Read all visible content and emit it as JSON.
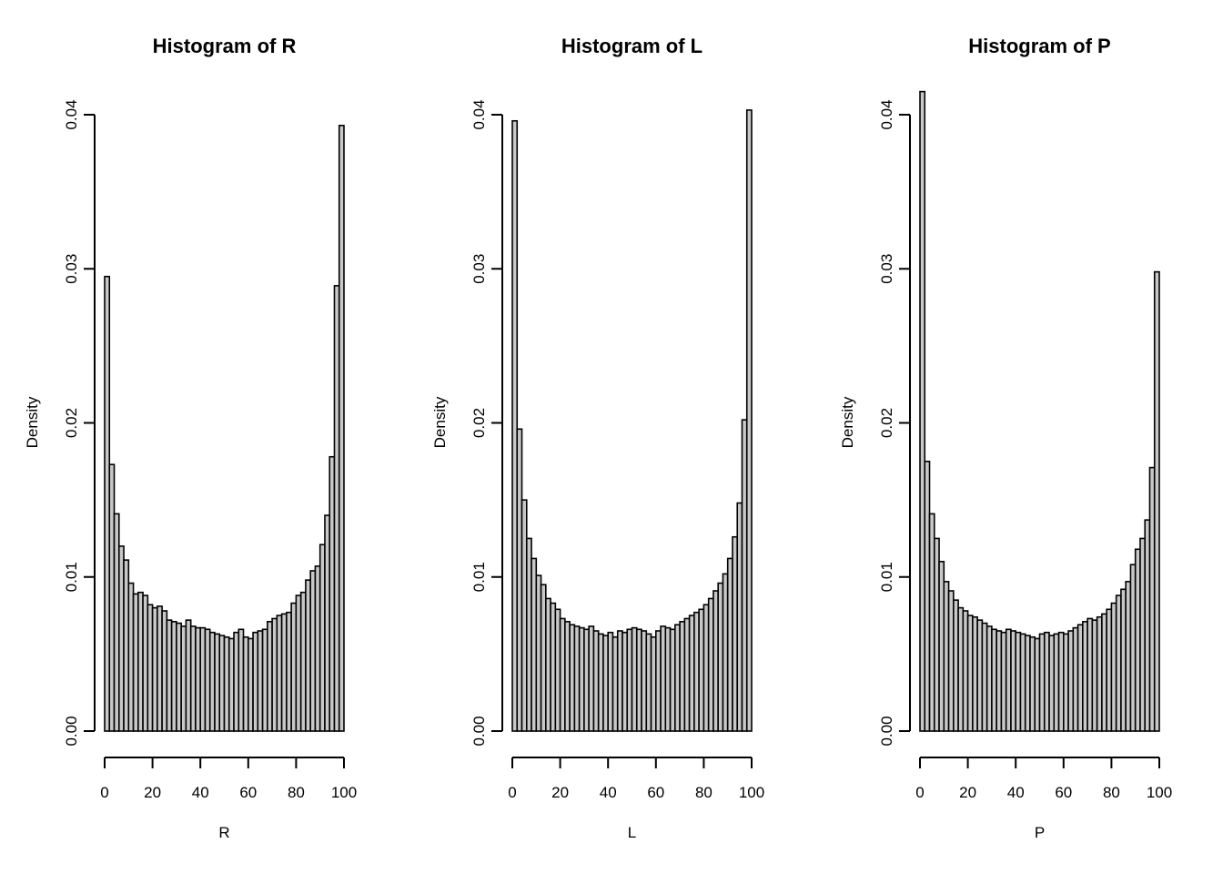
{
  "figure": {
    "background": "#ffffff",
    "bar_fill": "#c8c8c8",
    "bar_stroke": "#000000",
    "text_color": "#000000"
  },
  "chart_data": [
    {
      "type": "bar",
      "title": "Histogram of R",
      "xlabel": "R",
      "ylabel": "Density",
      "xlim": [
        0,
        100
      ],
      "ylim": [
        0,
        0.04
      ],
      "x_ticks": [
        0,
        20,
        40,
        60,
        80,
        100
      ],
      "y_ticks": [
        0,
        0.01,
        0.02,
        0.03,
        0.04
      ],
      "y_tick_labels": [
        "0.00",
        "0.01",
        "0.02",
        "0.03",
        "0.04"
      ],
      "grid": false,
      "legend": false,
      "bin_start": 0,
      "bin_width": 2,
      "values": [
        0.0295,
        0.0173,
        0.0141,
        0.012,
        0.0111,
        0.0096,
        0.0089,
        0.009,
        0.0088,
        0.0082,
        0.008,
        0.0081,
        0.0078,
        0.0072,
        0.0071,
        0.007,
        0.0068,
        0.0072,
        0.0068,
        0.0067,
        0.0067,
        0.0066,
        0.0064,
        0.0063,
        0.0062,
        0.0061,
        0.006,
        0.0064,
        0.0066,
        0.0061,
        0.006,
        0.0064,
        0.0065,
        0.0066,
        0.0071,
        0.0073,
        0.0075,
        0.0076,
        0.0077,
        0.0083,
        0.0088,
        0.009,
        0.0098,
        0.0104,
        0.0107,
        0.0121,
        0.014,
        0.0178,
        0.0289,
        0.0393
      ]
    },
    {
      "type": "bar",
      "title": "Histogram of L",
      "xlabel": "L",
      "ylabel": "Density",
      "xlim": [
        0,
        100
      ],
      "ylim": [
        0,
        0.04
      ],
      "x_ticks": [
        0,
        20,
        40,
        60,
        80,
        100
      ],
      "y_ticks": [
        0,
        0.01,
        0.02,
        0.03,
        0.04
      ],
      "y_tick_labels": [
        "0.00",
        "0.01",
        "0.02",
        "0.03",
        "0.04"
      ],
      "grid": false,
      "legend": false,
      "bin_start": 0,
      "bin_width": 2,
      "values": [
        0.0396,
        0.0196,
        0.015,
        0.0125,
        0.0112,
        0.0101,
        0.0095,
        0.0086,
        0.0083,
        0.0079,
        0.0073,
        0.0071,
        0.0069,
        0.0068,
        0.0067,
        0.0066,
        0.0068,
        0.0065,
        0.0063,
        0.0062,
        0.0064,
        0.0061,
        0.0065,
        0.0064,
        0.0066,
        0.0067,
        0.0066,
        0.0065,
        0.0063,
        0.0061,
        0.0065,
        0.0068,
        0.0067,
        0.0066,
        0.0069,
        0.0071,
        0.0073,
        0.0075,
        0.0077,
        0.0079,
        0.0082,
        0.0086,
        0.0091,
        0.0096,
        0.0102,
        0.0112,
        0.0126,
        0.0148,
        0.0202,
        0.0403
      ]
    },
    {
      "type": "bar",
      "title": "Histogram of P",
      "xlabel": "P",
      "ylabel": "Density",
      "xlim": [
        0,
        100
      ],
      "ylim": [
        0,
        0.04
      ],
      "x_ticks": [
        0,
        20,
        40,
        60,
        80,
        100
      ],
      "y_ticks": [
        0,
        0.01,
        0.02,
        0.03,
        0.04
      ],
      "y_tick_labels": [
        "0.00",
        "0.01",
        "0.02",
        "0.03",
        "0.04"
      ],
      "grid": false,
      "legend": false,
      "bin_start": 0,
      "bin_width": 2,
      "values": [
        0.0415,
        0.0175,
        0.0141,
        0.0125,
        0.011,
        0.0097,
        0.0091,
        0.0085,
        0.008,
        0.0078,
        0.0075,
        0.0074,
        0.0072,
        0.007,
        0.0068,
        0.0066,
        0.0065,
        0.0064,
        0.0066,
        0.0065,
        0.0064,
        0.0063,
        0.0062,
        0.0061,
        0.006,
        0.0063,
        0.0064,
        0.0062,
        0.0063,
        0.0064,
        0.0063,
        0.0065,
        0.0067,
        0.0069,
        0.0071,
        0.0073,
        0.0072,
        0.0074,
        0.0076,
        0.0079,
        0.0083,
        0.0088,
        0.0092,
        0.0097,
        0.0108,
        0.0118,
        0.0125,
        0.0137,
        0.0171,
        0.0298
      ]
    }
  ]
}
